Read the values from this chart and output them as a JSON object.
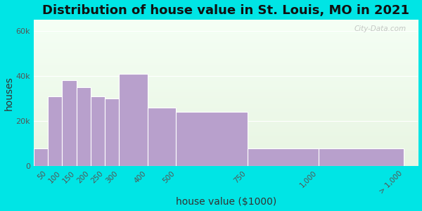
{
  "title": "Distribution of house value in St. Louis, MO in 2021",
  "xlabel": "house value ($1000)",
  "ylabel": "houses",
  "bar_labels": [
    "50",
    "100",
    "150",
    "200",
    "250",
    "300",
    "400",
    "500",
    "750",
    "1,000",
    "> 1,000"
  ],
  "bar_values": [
    8000,
    31000,
    38000,
    35000,
    31000,
    30000,
    41000,
    26000,
    24000,
    8000,
    8000
  ],
  "bin_lefts": [
    0,
    50,
    100,
    150,
    200,
    250,
    300,
    400,
    500,
    750,
    1000
  ],
  "bin_rights": [
    50,
    100,
    150,
    200,
    250,
    300,
    400,
    500,
    750,
    1000,
    1300
  ],
  "tick_positions": [
    50,
    100,
    150,
    200,
    250,
    300,
    400,
    500,
    750,
    1000,
    1300
  ],
  "bar_color": "#b8a0cc",
  "background_color": "#00e5e5",
  "plot_bg_color_top": "#e8f5e2",
  "plot_bg_color_bottom": "#f5fff5",
  "ylim": [
    0,
    65000
  ],
  "yticks": [
    0,
    20000,
    40000,
    60000
  ],
  "ytick_labels": [
    "0",
    "20k",
    "40k",
    "60k"
  ],
  "title_fontsize": 13,
  "axis_label_fontsize": 10,
  "watermark": "City-Data.com"
}
